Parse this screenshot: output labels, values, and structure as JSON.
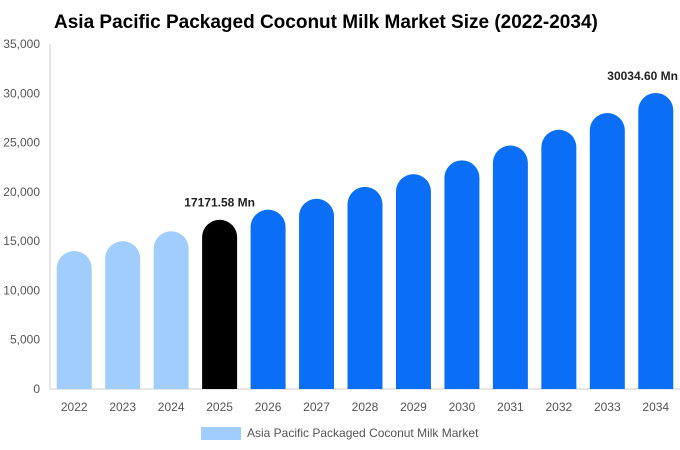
{
  "chart_data": {
    "type": "bar",
    "title": "Asia Pacific Packaged Coconut Milk Market Size (2022-2034)",
    "categories": [
      "2022",
      "2023",
      "2024",
      "2025",
      "2026",
      "2027",
      "2028",
      "2029",
      "2030",
      "2031",
      "2032",
      "2033",
      "2034"
    ],
    "series": [
      {
        "name": "Asia Pacific Packaged Coconut Milk Market",
        "values": [
          14000,
          15000,
          16000,
          17171.58,
          18200,
          19300,
          20500,
          21800,
          23200,
          24700,
          26300,
          28000,
          30034.6
        ]
      }
    ],
    "bar_colors": [
      "#a0cdfc",
      "#a0cdfc",
      "#a0cdfc",
      "#000000",
      "#0a6ef7",
      "#0a6ef7",
      "#0a6ef7",
      "#0a6ef7",
      "#0a6ef7",
      "#0a6ef7",
      "#0a6ef7",
      "#0a6ef7",
      "#0a6ef7"
    ],
    "data_labels": [
      {
        "category": "2025",
        "text": "17171.58 Mn"
      },
      {
        "category": "2034",
        "text": "30034.60 Mn"
      }
    ],
    "y_ticks": [
      "0",
      "5,000",
      "10,000",
      "15,000",
      "20,000",
      "25,000",
      "30,000",
      "35,000"
    ],
    "ylim": [
      0,
      35000
    ],
    "xlabel": "",
    "ylabel": "",
    "grid": false,
    "legend": {
      "position": "bottom-center",
      "label": "Asia Pacific Packaged Coconut Milk Market",
      "color": "#a0cdfc"
    }
  }
}
